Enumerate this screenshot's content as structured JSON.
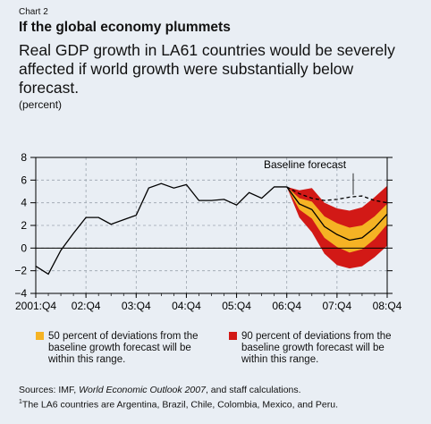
{
  "header": {
    "chart_label": "Chart 2",
    "title": "If the global economy plummets",
    "subtitle": "Real GDP growth in LA61 countries would be severely affected if world growth were substantially below forecast.",
    "unit": "(percent)"
  },
  "legend": {
    "yellow_label": "50 percent of deviations from the baseline growth forecast will be within this range.",
    "red_label": "90 percent of deviations from the baseline growth forecast will be within this range."
  },
  "footer": {
    "sources_prefix": "Sources: IMF, ",
    "sources_italic": "World Economic Outlook 2007",
    "sources_suffix": ", and staff calculations.",
    "footnote": "The LA6 countries are Argentina, Brazil, Chile, Colombia, Mexico, and Peru.",
    "footnote_mark": "1"
  },
  "colors": {
    "background": "#e9eef4",
    "band_90": "#d21916",
    "band_50": "#f5b324",
    "line": "#000000",
    "grid": "#9aa3ad"
  },
  "chart_data": {
    "type": "area",
    "xlim": [
      "2001:Q4",
      "2008:Q4"
    ],
    "ylim": [
      -4,
      8
    ],
    "yticks": [
      -4,
      -2,
      0,
      2,
      4,
      6,
      8
    ],
    "x_tick_labels": [
      "2001:Q4",
      "02:Q4",
      "03:Q4",
      "04:Q4",
      "05:Q4",
      "06:Q4",
      "07:Q4",
      "08:Q4"
    ],
    "grid": true,
    "zero_line": true,
    "annotation": "Baseline forecast",
    "actual": {
      "x": [
        "2001:Q4",
        "2002:Q1",
        "2002:Q2",
        "2002:Q3",
        "2002:Q4",
        "2003:Q1",
        "2003:Q2",
        "2003:Q3",
        "2003:Q4",
        "2004:Q1",
        "2004:Q2",
        "2004:Q3",
        "2004:Q4",
        "2005:Q1",
        "2005:Q2",
        "2005:Q3",
        "2005:Q4",
        "2006:Q1",
        "2006:Q2",
        "2006:Q3",
        "2006:Q4"
      ],
      "values": [
        -1.6,
        -2.3,
        -0.2,
        1.3,
        2.7,
        2.7,
        2.1,
        2.5,
        2.9,
        5.3,
        5.7,
        5.3,
        5.6,
        4.2,
        4.2,
        4.3,
        3.8,
        4.9,
        4.4,
        5.4,
        5.4
      ]
    },
    "forecast": {
      "x": [
        "2006:Q4",
        "2007:Q1",
        "2007:Q2",
        "2007:Q3",
        "2007:Q4",
        "2008:Q1",
        "2008:Q2",
        "2008:Q3",
        "2008:Q4"
      ],
      "baseline": [
        5.4,
        4.8,
        4.4,
        4.2,
        4.3,
        4.5,
        4.6,
        4.2,
        4.0
      ],
      "central": [
        5.4,
        3.9,
        3.4,
        1.9,
        1.2,
        0.7,
        0.9,
        1.8,
        3.0
      ],
      "band_50_upper": [
        5.4,
        4.4,
        4.1,
        2.8,
        2.2,
        1.8,
        2.0,
        2.8,
        3.9
      ],
      "band_50_lower": [
        5.4,
        3.4,
        2.6,
        0.9,
        0.1,
        -0.4,
        -0.1,
        0.8,
        2.1
      ],
      "band_90_upper": [
        5.4,
        5.1,
        5.3,
        4.0,
        3.5,
        3.3,
        3.6,
        4.5,
        5.5
      ],
      "band_90_lower": [
        5.4,
        2.7,
        1.4,
        -0.5,
        -1.5,
        -1.8,
        -1.6,
        -0.8,
        0.2
      ]
    }
  }
}
